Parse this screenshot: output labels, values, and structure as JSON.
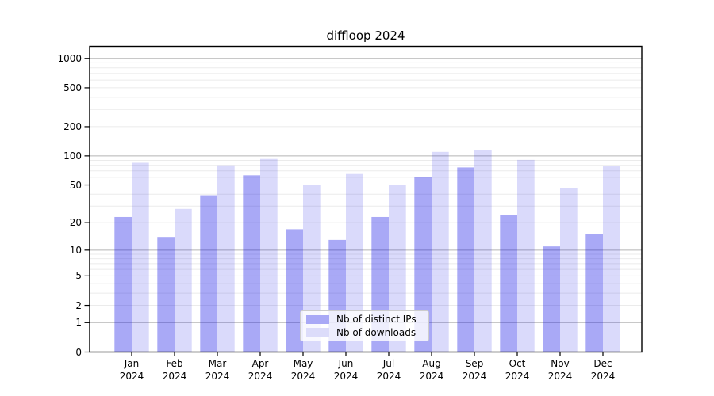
{
  "title": "diffloop 2024",
  "chart_data": {
    "type": "bar",
    "title": "diffloop 2024",
    "categories": [
      "Jan 2024",
      "Feb 2024",
      "Mar 2024",
      "Apr 2024",
      "May 2024",
      "Jun 2024",
      "Jul 2024",
      "Aug 2024",
      "Sep 2024",
      "Oct 2024",
      "Nov 2024",
      "Dec 2024"
    ],
    "series": [
      {
        "name": "Nb of distinct IPs",
        "values": [
          23,
          14,
          39,
          63,
          17,
          13,
          23,
          61,
          76,
          24,
          11,
          15
        ],
        "color": "rgba(10,10,230,0.35)",
        "swatch": "#a9a9f6"
      },
      {
        "name": "Nb of downloads",
        "values": [
          85,
          28,
          80,
          93,
          50,
          65,
          50,
          110,
          115,
          91,
          46,
          78
        ],
        "color": "rgba(10,10,230,0.15)",
        "swatch": "#dcdcfa"
      }
    ],
    "xlabel": "",
    "ylabel": "",
    "yscale": "log1p",
    "yticks": [
      0,
      1,
      2,
      5,
      10,
      20,
      50,
      100,
      200,
      500,
      1000
    ],
    "ylim": [
      0,
      1330
    ],
    "grid": "horizontal major+minor",
    "legend_position": "lower center inside",
    "colors": {
      "grid_major": "#b5b5b5",
      "grid_minor": "#ebebeb",
      "axis": "#000000",
      "background": "#ffffff"
    }
  }
}
